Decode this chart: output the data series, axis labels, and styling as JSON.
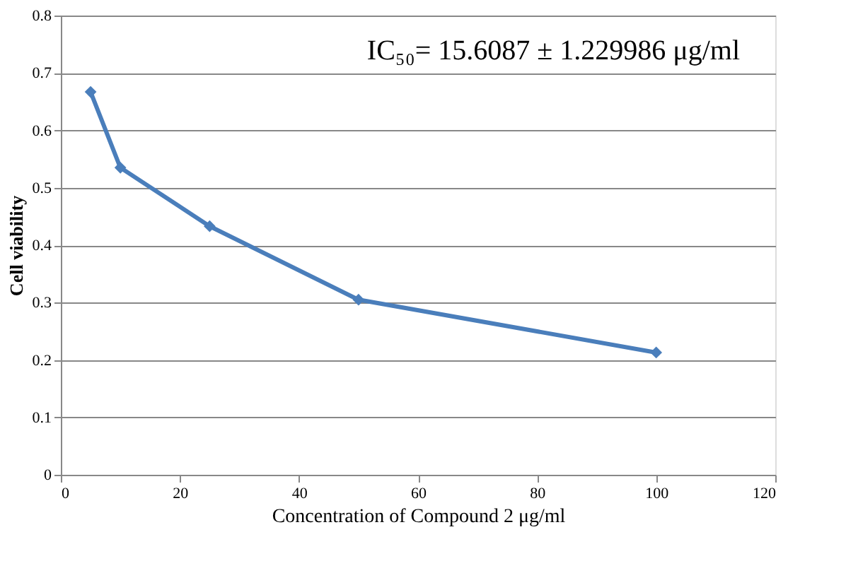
{
  "chart_data": {
    "type": "line",
    "x": [
      5,
      10,
      25,
      50,
      100
    ],
    "series": [
      {
        "color": "#4a7ebb",
        "values": [
          0.667,
          0.535,
          0.433,
          0.305,
          0.213
        ]
      }
    ],
    "xlabel": "Concentration of Compound 2   μg/ml",
    "ylabel": "Cell viability",
    "annotations": [
      "IC₅₀= 15.6087 ± 1.229986 μg/ml"
    ],
    "xlim": [
      0,
      120
    ],
    "xticks": [
      0,
      20,
      40,
      60,
      80,
      100,
      120
    ],
    "ylim": [
      0,
      0.8
    ],
    "yticks": [
      0,
      0.1,
      0.2,
      0.3,
      0.4,
      0.5,
      0.6,
      0.7,
      0.8
    ],
    "grid": "y",
    "marker": "diamond",
    "line_style": "solid"
  }
}
